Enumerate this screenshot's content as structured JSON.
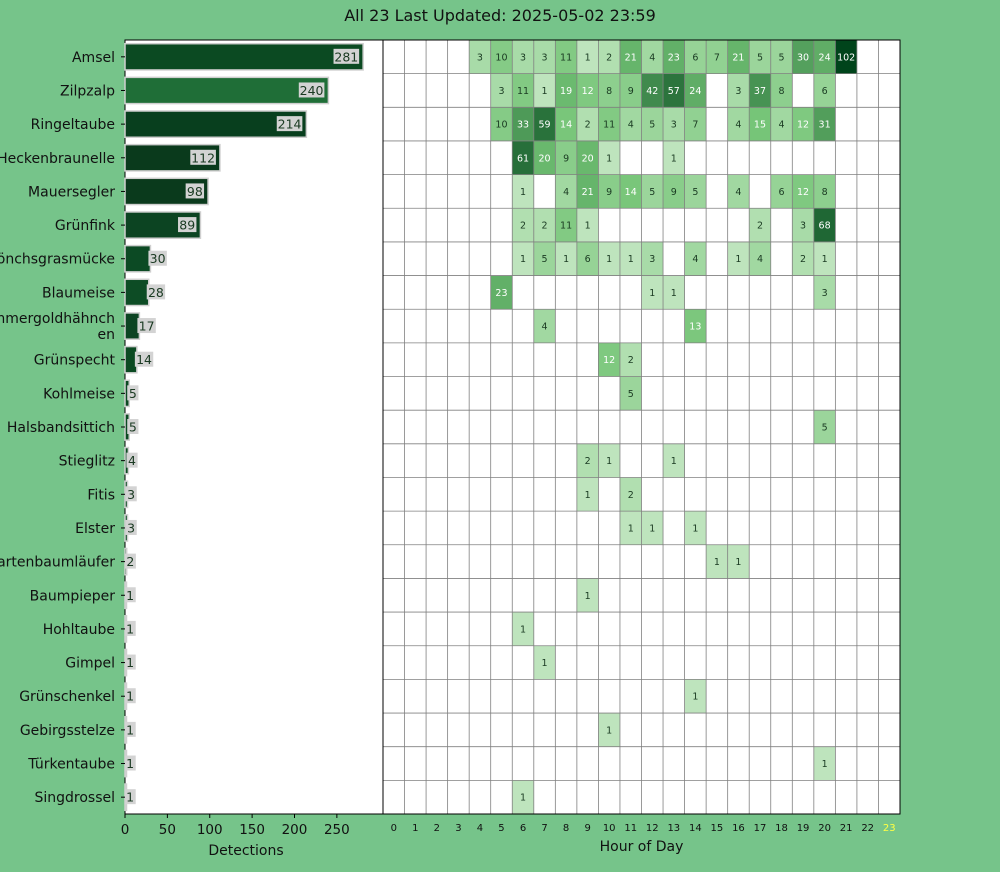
{
  "title": "All 23 Last Updated: 2025-05-02 23:59",
  "colors": {
    "page_background": "#76c48a",
    "bar_colors": [
      "#0b4a22",
      "#1f6e37",
      "#083f1e",
      "#0a3a1c",
      "#0a3a1c",
      "#0c4422",
      "#0c4a24",
      "#0d4c25",
      "#0c4423",
      "#0b4a22",
      "#0b4a22",
      "#0b4a22",
      "#0b4a22",
      "#0b4a22",
      "#0b4a22",
      "#0b4a22",
      "#0b4a22",
      "#0b4a22",
      "#0b4a22",
      "#0b4a22",
      "#0b4a22",
      "#0b4a22",
      "#0b4a22"
    ],
    "bar_label_bg": "#d3d3d3",
    "heat_low": "#f3fbef",
    "heat_high": "#00441b",
    "current_hour_tick": "#ffff44"
  },
  "chart_data": [
    {
      "type": "bar",
      "orientation": "horizontal",
      "categories": [
        "Amsel",
        "Zilpzalp",
        "Ringeltaube",
        "Heckenbraunelle",
        "Mauersegler",
        "Grünfink",
        "Mönchsgrasmücke",
        "Blaumeise",
        "Sommergoldhähnchen",
        "Grünspecht",
        "Kohlmeise",
        "Halsbandsittich",
        "Stieglitz",
        "Fitis",
        "Elster",
        "Gartenbaumläufer",
        "Baumpieper",
        "Hohltaube",
        "Gimpel",
        "Grünschenkel",
        "Gebirgsstelze",
        "Türkentaube",
        "Singdrossel"
      ],
      "category_display": [
        "Amsel",
        "Zilpzalp",
        "Ringeltaube",
        "Heckenbraunelle",
        "Mauersegler",
        "Grünfink",
        "Mönchsgrasmücke",
        "Blaumeise",
        "Sommergoldhähnch\nen",
        "Grünspecht",
        "Kohlmeise",
        "Halsbandsittich",
        "Stieglitz",
        "Fitis",
        "Elster",
        "Gartenbaumläufer",
        "Baumpieper",
        "Hohltaube",
        "Gimpel",
        "Grünschenkel",
        "Gebirgsstelze",
        "Türkentaube",
        "Singdrossel"
      ],
      "values": [
        281,
        240,
        214,
        112,
        98,
        89,
        30,
        28,
        17,
        14,
        5,
        5,
        4,
        3,
        3,
        2,
        1,
        1,
        1,
        1,
        1,
        1,
        1
      ],
      "xlabel": "Detections",
      "ylabel": "",
      "xticks": [
        0,
        50,
        100,
        150,
        200,
        250
      ],
      "xlim": [
        0,
        295
      ]
    },
    {
      "type": "heatmap",
      "xlabel": "Hour of Day",
      "hours": [
        0,
        1,
        2,
        3,
        4,
        5,
        6,
        7,
        8,
        9,
        10,
        11,
        12,
        13,
        14,
        15,
        16,
        17,
        18,
        19,
        20,
        21,
        22,
        23
      ],
      "current_hour": 23,
      "rows": [
        {
          "species": "Amsel",
          "counts": {
            "4": 3,
            "5": 10,
            "6": 3,
            "7": 3,
            "8": 11,
            "9": 1,
            "10": 2,
            "11": 21,
            "12": 4,
            "13": 23,
            "14": 6,
            "15": 7,
            "16": 21,
            "17": 5,
            "18": 5,
            "19": 30,
            "20": 24,
            "21": 102
          }
        },
        {
          "species": "Zilpzalp",
          "counts": {
            "5": 3,
            "6": 11,
            "7": 1,
            "8": 19,
            "9": 12,
            "10": 8,
            "11": 9,
            "12": 42,
            "13": 57,
            "14": 24,
            "16": 3,
            "17": 37,
            "18": 8,
            "20": 6
          }
        },
        {
          "species": "Ringeltaube",
          "counts": {
            "5": 10,
            "6": 33,
            "7": 59,
            "8": 14,
            "9": 2,
            "10": 11,
            "11": 4,
            "12": 5,
            "13": 3,
            "14": 7,
            "16": 4,
            "17": 15,
            "18": 4,
            "19": 12,
            "20": 31
          }
        },
        {
          "species": "Heckenbraunelle",
          "counts": {
            "6": 61,
            "7": 20,
            "8": 9,
            "9": 20,
            "10": 1,
            "13": 1
          }
        },
        {
          "species": "Mauersegler",
          "counts": {
            "6": 1,
            "8": 4,
            "9": 21,
            "10": 9,
            "11": 14,
            "12": 5,
            "13": 9,
            "14": 5,
            "16": 4,
            "18": 6,
            "19": 12,
            "20": 8
          }
        },
        {
          "species": "Grünfink",
          "counts": {
            "6": 2,
            "7": 2,
            "8": 11,
            "9": 1,
            "17": 2,
            "19": 3,
            "20": 68
          }
        },
        {
          "species": "Mönchsgrasmücke",
          "counts": {
            "6": 1,
            "7": 5,
            "8": 1,
            "9": 6,
            "10": 1,
            "11": 1,
            "12": 3,
            "14": 4,
            "16": 1,
            "17": 4,
            "19": 2,
            "20": 1
          }
        },
        {
          "species": "Blaumeise",
          "counts": {
            "5": 23,
            "12": 1,
            "13": 1,
            "20": 3
          }
        },
        {
          "species": "Sommergoldhähnchen",
          "counts": {
            "7": 4,
            "14": 13
          }
        },
        {
          "species": "Grünspecht",
          "counts": {
            "10": 12,
            "11": 2
          }
        },
        {
          "species": "Kohlmeise",
          "counts": {
            "11": 5
          }
        },
        {
          "species": "Halsbandsittich",
          "counts": {
            "20": 5
          }
        },
        {
          "species": "Stieglitz",
          "counts": {
            "9": 2,
            "10": 1,
            "13": 1
          }
        },
        {
          "species": "Fitis",
          "counts": {
            "9": 1,
            "11": 2
          }
        },
        {
          "species": "Elster",
          "counts": {
            "11": 1,
            "12": 1,
            "14": 1
          }
        },
        {
          "species": "Gartenbaumläufer",
          "counts": {
            "15": 1,
            "16": 1
          }
        },
        {
          "species": "Baumpieper",
          "counts": {
            "9": 1
          }
        },
        {
          "species": "Hohltaube",
          "counts": {
            "6": 1
          }
        },
        {
          "species": "Gimpel",
          "counts": {
            "7": 1
          }
        },
        {
          "species": "Grünschenkel",
          "counts": {
            "14": 1
          }
        },
        {
          "species": "Gebirgsstelze",
          "counts": {
            "10": 1
          }
        },
        {
          "species": "Türkentaube",
          "counts": {
            "20": 1
          }
        },
        {
          "species": "Singdrossel",
          "counts": {
            "6": 1
          }
        }
      ]
    }
  ]
}
